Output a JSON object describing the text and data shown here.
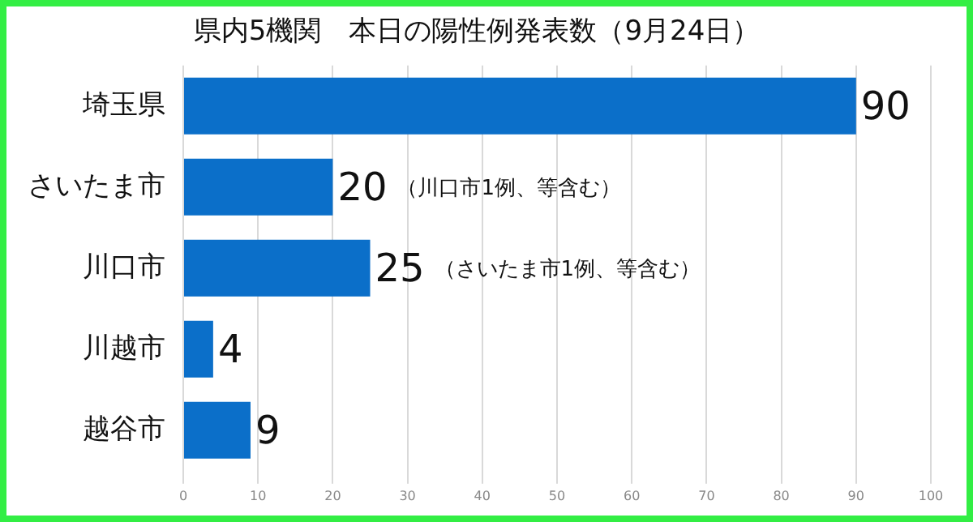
{
  "chart_data": {
    "type": "bar",
    "orientation": "horizontal",
    "title": "県内5機関　本日の陽性例発表数（9月24日）",
    "categories": [
      "埼玉県",
      "さいたま市",
      "川口市",
      "川越市",
      "越谷市"
    ],
    "values": [
      90,
      20,
      25,
      4,
      9
    ],
    "color": "#0b6fc9",
    "data_labels": true,
    "xlim": [
      0,
      100
    ],
    "xticks": [
      0,
      10,
      20,
      30,
      40,
      50,
      60,
      70,
      80,
      90,
      100
    ],
    "grid": "x",
    "legend": false,
    "annotations": [
      "（川口市1例、等含む）",
      "（さいたま市1例、等含む）"
    ]
  }
}
